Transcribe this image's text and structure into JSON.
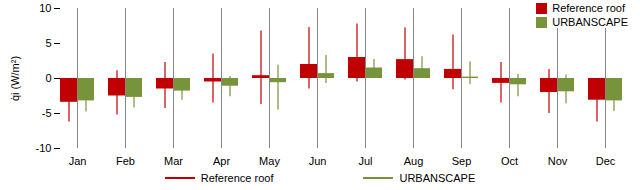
{
  "chart_data": {
    "type": "bar",
    "categories": [
      "Jan",
      "Feb",
      "Mar",
      "Apr",
      "May",
      "Jun",
      "Jul",
      "Aug",
      "Sep",
      "Oct",
      "Nov",
      "Dec"
    ],
    "series": [
      {
        "name": "Reference roof",
        "color": "#c00000",
        "values": [
          -3.4,
          -2.5,
          -1.5,
          -0.5,
          0.4,
          2.0,
          3.0,
          2.7,
          1.3,
          -0.7,
          -2.0,
          -3.1
        ],
        "error_low": [
          -6.2,
          -5.2,
          -4.3,
          -3.5,
          -3.7,
          -1.5,
          -0.5,
          -0.2,
          -1.6,
          -3.5,
          -5.0,
          -6.2
        ],
        "error_high": [
          -0.5,
          1.1,
          2.3,
          3.5,
          6.8,
          7.3,
          7.8,
          7.2,
          6.2,
          2.3,
          1.3,
          -0.3
        ]
      },
      {
        "name": "URBANSCAPE",
        "color": "#77933c",
        "values": [
          -3.2,
          -2.7,
          -1.8,
          -1.1,
          -0.6,
          0.7,
          1.5,
          1.4,
          0.2,
          -0.9,
          -1.9,
          -3.2
        ],
        "error_low": [
          -4.8,
          -4.2,
          -3.1,
          -2.6,
          -4.5,
          -0.7,
          0.0,
          0.1,
          -0.9,
          -2.6,
          -3.6,
          -4.7
        ],
        "error_high": [
          -1.8,
          -1.0,
          -0.5,
          0.3,
          1.9,
          3.3,
          2.7,
          3.1,
          2.4,
          0.6,
          0.5,
          -1.6
        ]
      }
    ],
    "ylabel": "q̇i (W/m²)",
    "ylim": [
      -10,
      10
    ],
    "yticks": [
      -10,
      -5,
      0,
      5,
      10
    ],
    "grid": false,
    "legend": "top-right"
  }
}
